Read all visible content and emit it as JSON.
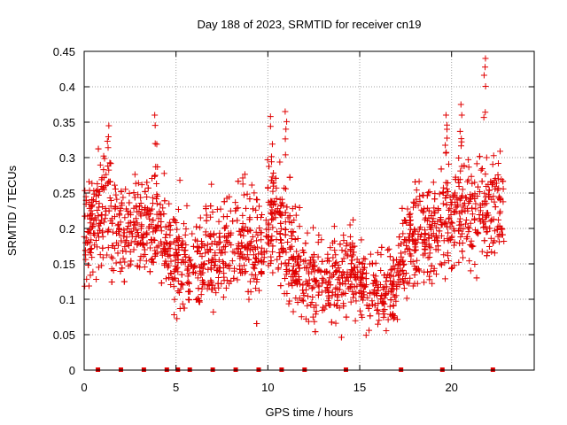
{
  "chart_data": {
    "type": "scatter",
    "title": "Day 188 of 2023, SRMTID for receiver cn19",
    "xlabel": "GPS time / hours",
    "ylabel": "SRMTID / TECUs",
    "xlim": [
      0,
      24.5
    ],
    "ylim": [
      0,
      0.45
    ],
    "x_ticks": [
      0,
      5,
      10,
      15,
      20
    ],
    "x_tick_labels": [
      "0",
      "5",
      "10",
      "15",
      "20"
    ],
    "y_ticks": [
      0,
      0.05,
      0.1,
      0.15,
      0.2,
      0.25,
      0.3,
      0.35,
      0.4,
      0.45
    ],
    "y_tick_labels": [
      "0",
      "0.05",
      "0.1",
      "0.15",
      "0.2",
      "0.25",
      "0.3",
      "0.35",
      "0.4",
      "0.45"
    ],
    "grid": true,
    "marker": "+",
    "series_color": "#e00000",
    "zero_markers_x": [
      0.75,
      2.0,
      3.25,
      4.5,
      5.1,
      5.75,
      7.0,
      8.25,
      9.5,
      10.75,
      12.0,
      14.25,
      17.25,
      19.5,
      22.25
    ],
    "series": [
      {
        "name": "SRMTID",
        "profile_hours": [
          0.0,
          0.5,
          1.0,
          1.3,
          1.8,
          2.3,
          2.8,
          3.3,
          3.8,
          4.3,
          4.8,
          5.3,
          5.8,
          6.3,
          6.8,
          7.3,
          7.8,
          8.3,
          8.8,
          9.3,
          9.8,
          10.3,
          10.8,
          11.3,
          11.8,
          12.3,
          12.8,
          13.3,
          13.8,
          14.3,
          14.8,
          15.3,
          15.8,
          16.3,
          16.8,
          17.3,
          17.8,
          18.3,
          18.8,
          19.3,
          19.8,
          20.3,
          20.8,
          21.3,
          21.8,
          22.3,
          22.7
        ],
        "profile_mean": [
          0.19,
          0.2,
          0.22,
          0.24,
          0.19,
          0.2,
          0.2,
          0.2,
          0.22,
          0.18,
          0.15,
          0.15,
          0.15,
          0.15,
          0.17,
          0.15,
          0.17,
          0.2,
          0.18,
          0.17,
          0.17,
          0.23,
          0.18,
          0.16,
          0.13,
          0.13,
          0.12,
          0.12,
          0.13,
          0.14,
          0.13,
          0.13,
          0.11,
          0.11,
          0.12,
          0.15,
          0.18,
          0.18,
          0.19,
          0.19,
          0.21,
          0.22,
          0.22,
          0.22,
          0.22,
          0.23,
          0.23
        ],
        "notable_peaks": [
          {
            "x": 1.3,
            "y": 0.345
          },
          {
            "x": 3.9,
            "y": 0.36
          },
          {
            "x": 10.2,
            "y": 0.358
          },
          {
            "x": 11.0,
            "y": 0.365
          },
          {
            "x": 19.7,
            "y": 0.36
          },
          {
            "x": 20.5,
            "y": 0.375
          },
          {
            "x": 21.8,
            "y": 0.44
          }
        ]
      }
    ]
  }
}
